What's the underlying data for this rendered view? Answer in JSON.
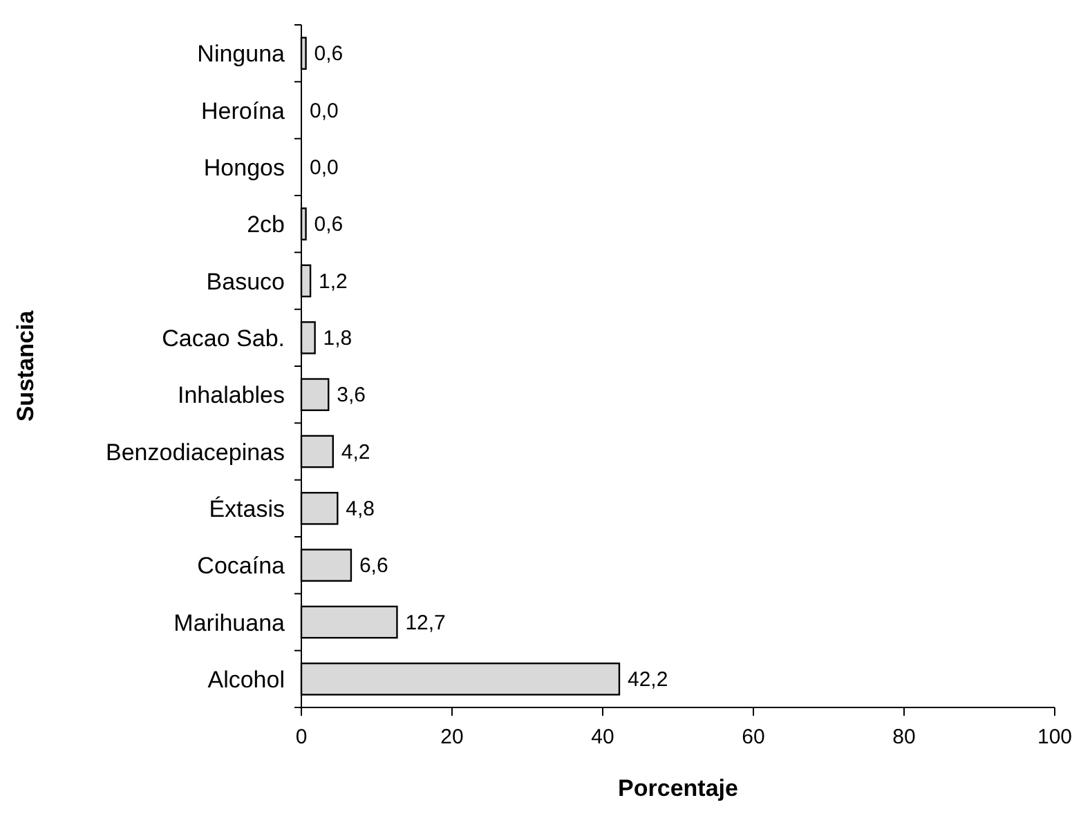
{
  "chart_data": {
    "type": "bar",
    "orientation": "horizontal",
    "xlabel": "Porcentaje",
    "ylabel": "Sustancia",
    "categories": [
      "Ninguna",
      "Heroína",
      "Hongos",
      "2cb",
      "Basuco",
      "Cacao Sab.",
      "Inhalables",
      "Benzodiacepinas",
      "Éxtasis",
      "Cocaína",
      "Marihuana",
      "Alcohol"
    ],
    "values": [
      0.6,
      0,
      0,
      0.6,
      1.2,
      1.8,
      3.6,
      4.2,
      4.8,
      6.6,
      12.7,
      42.2
    ],
    "value_labels": [
      "0,6",
      "0,0",
      "0,0",
      "0,6",
      "1,2",
      "1,8",
      "3,6",
      "4,2",
      "4,8",
      "6,6",
      "12,7",
      "42,2"
    ],
    "color": "#d9d9d9",
    "xlim": [
      0,
      100
    ],
    "xticks": [
      0,
      20,
      40,
      60,
      80,
      100
    ],
    "grid": false
  }
}
